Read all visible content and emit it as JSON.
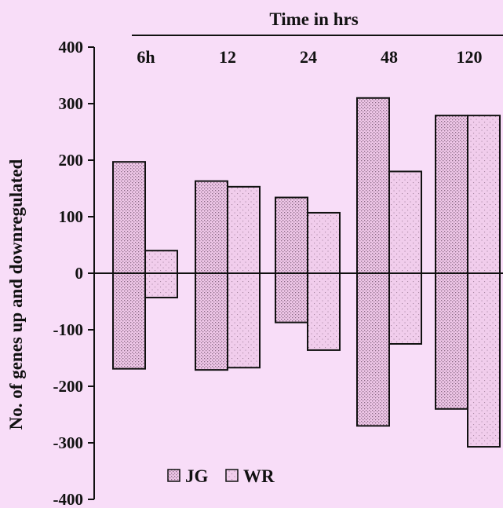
{
  "chart_data": {
    "type": "bar",
    "title": "Time in hrs",
    "xlabel": "Time in hrs",
    "ylabel": "No. of genes up and downregulated",
    "categories": [
      "6h",
      "12",
      "24",
      "48",
      "120"
    ],
    "ylim": [
      -400,
      400
    ],
    "yticks": [
      400,
      300,
      200,
      100,
      0,
      -100,
      -200,
      -300,
      -400
    ],
    "series": [
      {
        "name": "JG",
        "up": [
          197,
          163,
          134,
          310,
          279
        ],
        "down": [
          -169,
          -171,
          -87,
          -270,
          -240
        ]
      },
      {
        "name": "WR",
        "up": [
          40,
          153,
          107,
          180,
          279
        ],
        "down": [
          -43,
          -167,
          -136,
          -125,
          -307
        ]
      }
    ],
    "legend": {
      "placement": "bottom-left",
      "entries": [
        "JG",
        "WR"
      ]
    },
    "grid": false
  },
  "colors": {
    "background": "#f8ddf8",
    "bar_fill": "#efc7e8",
    "stipple": "#8a6a85",
    "stroke": "#111111"
  }
}
